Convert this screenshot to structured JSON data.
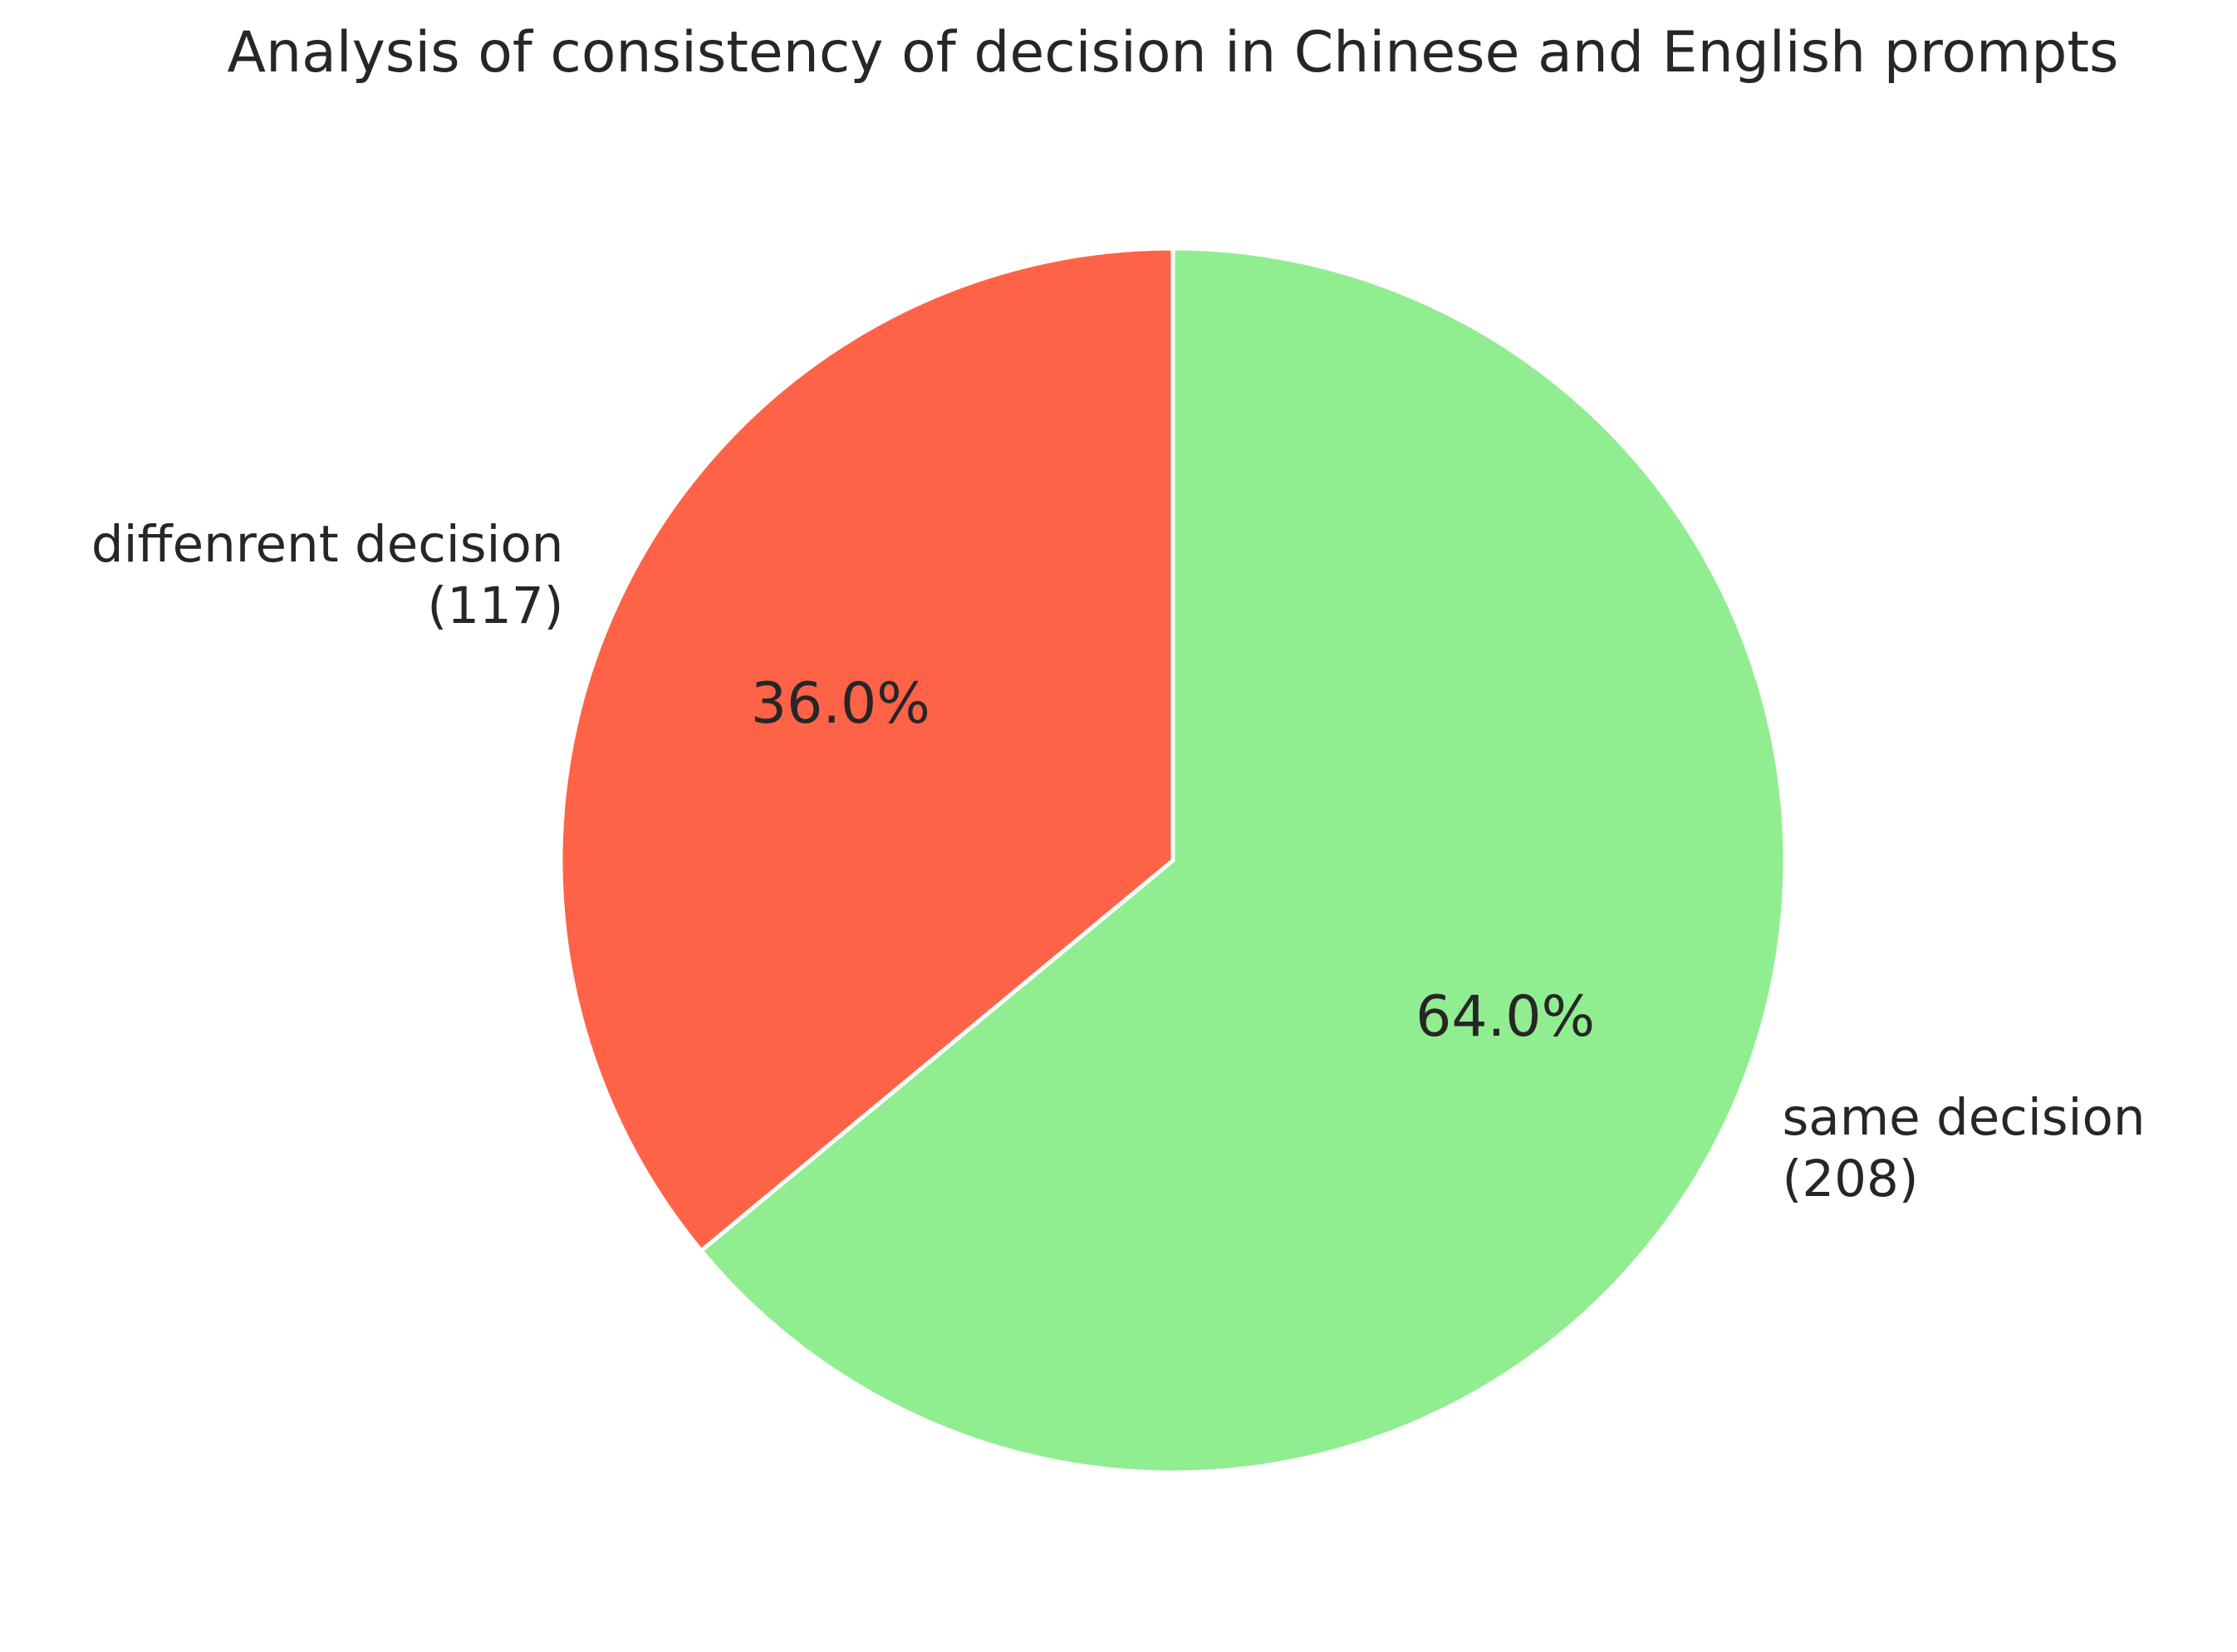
{
  "chart_data": {
    "type": "pie",
    "title": "Analysis of consistency of decision in Chinese and English prompts",
    "start_angle_deg": 90,
    "direction": "clockwise",
    "slices": [
      {
        "label": "same decision",
        "count_label": "(208)",
        "value": 208,
        "percent_label": "64.0%",
        "color": "#90ee90"
      },
      {
        "label": "diffenrent decision",
        "count_label": "(117)",
        "value": 117,
        "percent_label": "36.0%",
        "color": "#ff6347"
      }
    ],
    "edge_color": "#ffffff"
  }
}
